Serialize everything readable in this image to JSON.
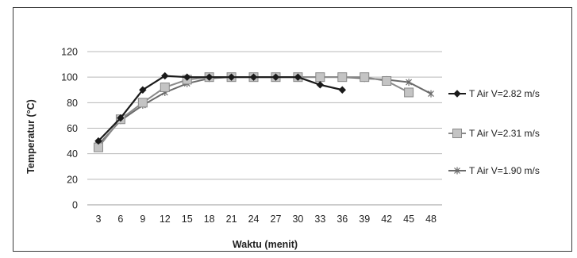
{
  "chart_data": {
    "type": "line",
    "title": "",
    "xlabel": "Waktu (menit)",
    "ylabel": "Temperatur (°C)",
    "x": [
      3,
      6,
      9,
      12,
      15,
      18,
      21,
      24,
      27,
      30,
      33,
      36,
      39,
      42,
      45,
      48
    ],
    "ylim": [
      0,
      120
    ],
    "yticks": [
      0,
      20,
      40,
      60,
      80,
      100,
      120
    ],
    "grid": true,
    "legend_position": "right",
    "series": [
      {
        "name": "T Air V=2.82 m/s",
        "color": "#1a1a1a",
        "marker": "diamond",
        "values": [
          50,
          68,
          90,
          101,
          100,
          100,
          100,
          100,
          100,
          100,
          94,
          90,
          null,
          null,
          null,
          null
        ]
      },
      {
        "name": "T Air V=2.31 m/s",
        "color": "#8a8a8a",
        "marker": "square",
        "values": [
          45,
          67,
          80,
          92,
          98,
          100,
          100,
          100,
          100,
          100,
          100,
          100,
          100,
          97,
          88,
          null
        ]
      },
      {
        "name": "T Air V=1.90 m/s",
        "color": "#6a6a6a",
        "marker": "star",
        "values": [
          47,
          66,
          78,
          88,
          95,
          99,
          100,
          100,
          100,
          100,
          100,
          100,
          99,
          98,
          96,
          87
        ]
      }
    ]
  }
}
